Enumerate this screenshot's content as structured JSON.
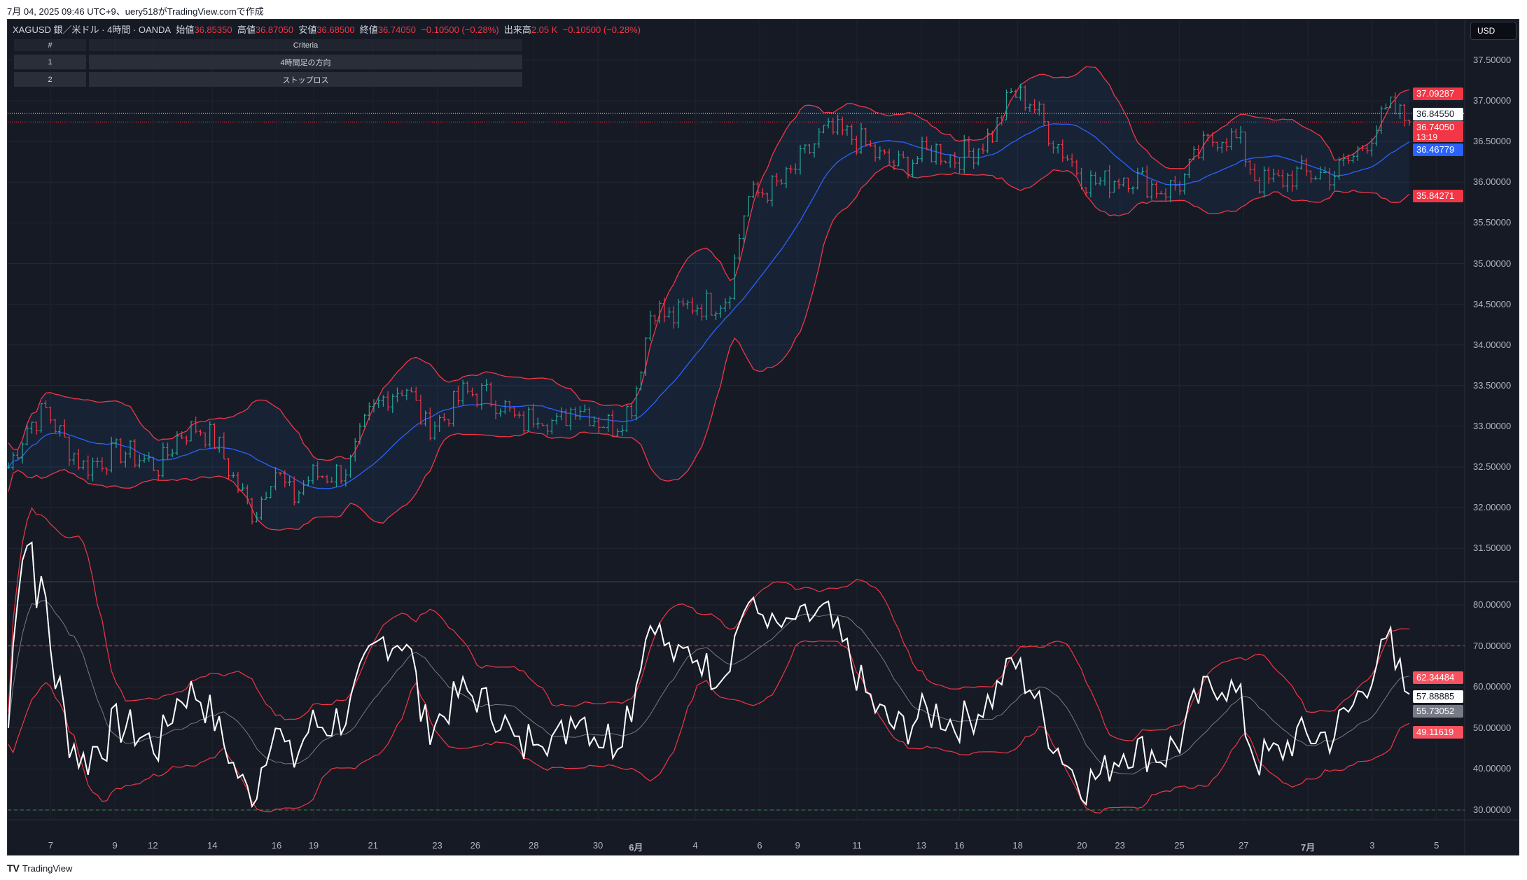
{
  "caption": "7月 04, 2025 09:46 UTC+9、uery518がTradingView.comで作成",
  "legend": {
    "symbol": "XAGUSD",
    "name": "銀／米ドル · 4時間 · OANDA",
    "open_label": "始値",
    "open": "36.85350",
    "high_label": "高値",
    "high": "36.87050",
    "low_label": "安値",
    "low": "36.68500",
    "close_label": "終値",
    "close": "36.74050",
    "change": "−0.10500 (−0.28%)",
    "volume_label": "出来高",
    "volume": "2.05 K",
    "volume_change": "−0.10500 (−0.28%)"
  },
  "table": {
    "headers": [
      "#",
      "Criteria"
    ],
    "rows": [
      [
        "1",
        "4時間足の方向"
      ],
      [
        "2",
        "ストップロス"
      ]
    ]
  },
  "currency": "USD",
  "price_tags": {
    "upper_band": "37.09287",
    "bid_line": "36.84550",
    "last": "36.74050",
    "countdown": "13:19",
    "basis": "36.46779",
    "lower_band": "35.84271"
  },
  "rsi_tags": {
    "upper": "62.34484",
    "rsi": "57.88885",
    "ma": "55.73052",
    "lower": "49.11619"
  },
  "footer": "TradingView",
  "colors": {
    "up": "#26a69a",
    "down": "#f23645",
    "basis": "#2962ff",
    "band": "#f23645",
    "rsi": "#ffffff",
    "bg": "#161a25"
  },
  "chart_data": {
    "type": "candlestick",
    "title": "XAGUSD 4H OANDA with Bollinger Bands and RSI",
    "price_axis": {
      "ticks": [
        "37.50000",
        "37.00000",
        "36.50000",
        "36.00000",
        "35.50000",
        "35.00000",
        "34.50000",
        "34.00000",
        "33.50000",
        "33.00000",
        "32.50000",
        "32.00000",
        "31.50000"
      ],
      "range": [
        31.3,
        37.75
      ]
    },
    "rsi_axis": {
      "ticks": [
        "80.00000",
        "70.00000",
        "60.00000",
        "50.00000",
        "40.00000",
        "30.00000"
      ],
      "range": [
        27,
        82
      ],
      "levels": [
        70,
        30
      ]
    },
    "x_ticks": [
      "7",
      "9",
      "12",
      "14",
      "16",
      "19",
      "21",
      "23",
      "26",
      "28",
      "30",
      "6月",
      "4",
      "6",
      "9",
      "11",
      "13",
      "16",
      "18",
      "20",
      "23",
      "25",
      "27",
      "7月",
      "3",
      "5"
    ],
    "closes": [
      32.5,
      33.0,
      33.2,
      32.8,
      32.5,
      32.6,
      32.7,
      32.6,
      32.5,
      32.9,
      33.0,
      32.8,
      32.3,
      31.9,
      32.5,
      32.1,
      32.4,
      32.4,
      32.5,
      33.1,
      33.4,
      33.5,
      33.0,
      33.1,
      33.4,
      33.4,
      33.3,
      33.0,
      33.2,
      33.0,
      33.3,
      33.1,
      33.0,
      33.3,
      34.5,
      34.3,
      34.5,
      34.5,
      34.6,
      35.8,
      35.9,
      36.0,
      36.3,
      36.6,
      36.6,
      36.5,
      36.3,
      36.2,
      36.3,
      36.4,
      36.3,
      36.4,
      36.6,
      37.1,
      37.0,
      36.6,
      36.3,
      36.0,
      36.0,
      36.1,
      36.0,
      35.9,
      36.0,
      36.4,
      36.6,
      36.5,
      36.0,
      36.0,
      36.1,
      36.1,
      36.1,
      36.3,
      36.6,
      36.9,
      36.74
    ]
  }
}
